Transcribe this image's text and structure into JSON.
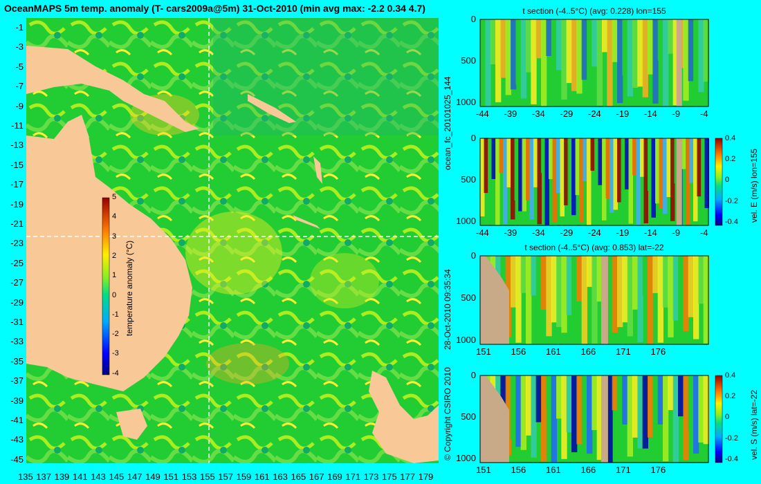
{
  "map": {
    "title": "OceanMAPS 5m temp. anomaly (T- cars2009a@5m) 31-Oct-2010 (min avg max: -2.2 0.34 4.7)",
    "lat_ticks": [
      "-1",
      "-3",
      "-5",
      "-7",
      "-9",
      "-11",
      "-13",
      "-15",
      "-17",
      "-19",
      "-21",
      "-23",
      "-25",
      "-27",
      "-29",
      "-31",
      "-33",
      "-35",
      "-37",
      "-39",
      "-41",
      "-43",
      "-45"
    ],
    "lon_ticks": [
      "135",
      "137",
      "139",
      "141",
      "143",
      "145",
      "147",
      "149",
      "151",
      "153",
      "155",
      "157",
      "159",
      "161",
      "163",
      "165",
      "167",
      "169",
      "171",
      "173",
      "175",
      "177",
      "179"
    ],
    "colorbar": {
      "label": "temperature anomaly (°C)",
      "ticks": [
        "5",
        "4",
        "3",
        "2",
        "1",
        "0",
        "-1",
        "-2",
        "-3",
        "-4"
      ],
      "range": [
        -4,
        5
      ]
    },
    "crosshair": {
      "lon": 155,
      "lat": -22
    }
  },
  "side_labels": {
    "forecast_id": "ocean_fc_20101025_144",
    "timestamp": "28-Oct-2010 09:35:34",
    "copyright": "© Copyright CSIRO 2010"
  },
  "sections": [
    {
      "title": "t section (-4..5°C) (avg: 0.228) lon=155",
      "y_ticks": [
        "0",
        "500",
        "1000"
      ],
      "x_ticks": [
        "-44",
        "-39",
        "-34",
        "-29",
        "-24",
        "-19",
        "-14",
        "-9",
        "-4"
      ],
      "colorbar": null
    },
    {
      "title": "",
      "y_ticks": [
        "0",
        "500",
        "1000"
      ],
      "x_ticks": [
        "-44",
        "-39",
        "-34",
        "-29",
        "-24",
        "-19",
        "-14",
        "-9",
        "-4"
      ],
      "colorbar": {
        "label": "vel. E (m/s) lon=155",
        "ticks": [
          "0.4",
          "0.2",
          "0",
          "-0.2",
          "-0.4"
        ]
      }
    },
    {
      "title": "t section (-4..5°C) (avg: 0.853) lat=-22",
      "y_ticks": [
        "0",
        "500",
        "1000"
      ],
      "x_ticks": [
        "151",
        "156",
        "161",
        "166",
        "171",
        "176"
      ],
      "colorbar": null
    },
    {
      "title": "",
      "y_ticks": [
        "0",
        "500",
        "1000"
      ],
      "x_ticks": [
        "151",
        "156",
        "161",
        "166",
        "171",
        "176"
      ],
      "colorbar": {
        "label": "vel. S (m/s) lat=-22",
        "ticks": [
          "0.4",
          "0.2",
          "0",
          "-0.2",
          "-0.4"
        ]
      }
    }
  ],
  "colors": {
    "background": "#00ffff",
    "land": "#f8c896",
    "section_land": "#c8aa88",
    "ocean_base": "#22cc33"
  }
}
